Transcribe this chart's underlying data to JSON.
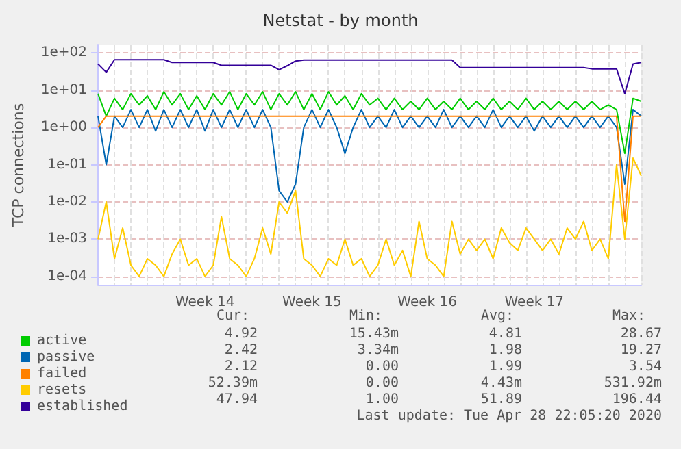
{
  "chart_data": {
    "type": "line",
    "title": "Netstat - by month",
    "ylabel": "TCP connections",
    "log": true,
    "grid": true,
    "legend": "bottom left",
    "categories": [
      null,
      null,
      null,
      null,
      null,
      null,
      null,
      null,
      null,
      null,
      null,
      null,
      null,
      "Week 14",
      null,
      null,
      null,
      null,
      null,
      null,
      null,
      null,
      null,
      null,
      null,
      null,
      "Week 15",
      null,
      null,
      null,
      null,
      null,
      null,
      null,
      null,
      null,
      null,
      null,
      null,
      null,
      "Week 16",
      null,
      null,
      null,
      null,
      null,
      null,
      null,
      null,
      null,
      null,
      null,
      null,
      "Week 17",
      null,
      null,
      null,
      null,
      null,
      null,
      null,
      null,
      null,
      null,
      null,
      null,
      null
    ],
    "ylim": [
      6e-05,
      160
    ],
    "yticks": [
      {
        "value": 0.0001,
        "label": "1e-04"
      },
      {
        "value": 0.001,
        "label": "1e-03"
      },
      {
        "value": 0.01,
        "label": "1e-02"
      },
      {
        "value": 0.1,
        "label": "1e-01"
      },
      {
        "value": 1,
        "label": "1e+00"
      },
      {
        "value": 10,
        "label": "1e+01"
      },
      {
        "value": 100,
        "label": "1e+02"
      }
    ],
    "series": [
      {
        "name": "active",
        "color": "#00cc00",
        "values": [
          8,
          2,
          6,
          3,
          8,
          4,
          7,
          3,
          9,
          4,
          8,
          3,
          7,
          3,
          8,
          4,
          9,
          3,
          8,
          4,
          9,
          3,
          8,
          4,
          9,
          3,
          8,
          3,
          9,
          4,
          7,
          3,
          8,
          4,
          6,
          3,
          6,
          3,
          5,
          3,
          6,
          3,
          5,
          3,
          6,
          3,
          5,
          3,
          6,
          3,
          5,
          3,
          6,
          3,
          5,
          3,
          5,
          3,
          5,
          3,
          5,
          3,
          4,
          3,
          0.2,
          6,
          5
        ]
      },
      {
        "name": "passive",
        "color": "#0066b3",
        "values": [
          2,
          0.1,
          2,
          1,
          3,
          1,
          3,
          0.8,
          3,
          1,
          3,
          1,
          3,
          0.8,
          3,
          1,
          3,
          1,
          3,
          1,
          3,
          1,
          0.02,
          0.01,
          0.03,
          1,
          3,
          1,
          3,
          1,
          0.2,
          1,
          3,
          1,
          2,
          1,
          3,
          1,
          2,
          1,
          2,
          1,
          3,
          1,
          2,
          1,
          2,
          1,
          3,
          1,
          2,
          1,
          2,
          0.8,
          2,
          1,
          2,
          1,
          2,
          1,
          2,
          1,
          2,
          1,
          0.03,
          3,
          2
        ]
      },
      {
        "name": "failed",
        "color": "#ff8000",
        "values": [
          1,
          2,
          2,
          2,
          2,
          2,
          2,
          2,
          2,
          2,
          2,
          2,
          2,
          2,
          2,
          2,
          2,
          2,
          2,
          2,
          2,
          2,
          2,
          2,
          2,
          2,
          2,
          2,
          2,
          2,
          2,
          2,
          2,
          2,
          2,
          2,
          2,
          2,
          2,
          2,
          2,
          2,
          2,
          2,
          2,
          2,
          2,
          2,
          2,
          2,
          2,
          2,
          2,
          2,
          2,
          2,
          2,
          2,
          2,
          2,
          2,
          2,
          2,
          2,
          0.003,
          2,
          2
        ]
      },
      {
        "name": "resets",
        "color": "#ffcc00",
        "values": [
          0.001,
          0.01,
          0.0003,
          0.002,
          0.0002,
          0.0001,
          0.0003,
          0.0002,
          0.0001,
          0.0004,
          0.001,
          0.0002,
          0.0003,
          0.0001,
          0.0002,
          0.004,
          0.0003,
          0.0002,
          0.0001,
          0.0003,
          0.002,
          0.0004,
          0.01,
          0.005,
          0.02,
          0.0003,
          0.0002,
          0.0001,
          0.0003,
          0.0002,
          0.001,
          0.0002,
          0.0003,
          0.0001,
          0.0002,
          0.001,
          0.0002,
          0.0005,
          0.0001,
          0.003,
          0.0003,
          0.0002,
          0.0001,
          0.003,
          0.0004,
          0.001,
          0.0005,
          0.001,
          0.0003,
          0.002,
          0.0008,
          0.0005,
          0.002,
          0.001,
          0.0005,
          0.001,
          0.0004,
          0.002,
          0.001,
          0.003,
          0.0005,
          0.001,
          0.0003,
          0.1,
          0.001,
          0.15,
          0.05
        ]
      },
      {
        "name": "established",
        "color": "#330099",
        "values": [
          50,
          30,
          65,
          65,
          65,
          65,
          65,
          65,
          65,
          55,
          55,
          55,
          55,
          55,
          55,
          46,
          46,
          46,
          46,
          46,
          46,
          46,
          35,
          45,
          60,
          64,
          64,
          64,
          64,
          64,
          64,
          64,
          64,
          64,
          64,
          64,
          64,
          64,
          64,
          64,
          64,
          64,
          64,
          64,
          40,
          40,
          40,
          40,
          40,
          40,
          40,
          40,
          40,
          40,
          40,
          40,
          40,
          40,
          40,
          40,
          37,
          37,
          37,
          37,
          8,
          50,
          55
        ]
      }
    ],
    "annotations": [
      "Cur:",
      "Min:",
      "Avg:",
      "Max:",
      "4.92",
      "15.43m",
      "4.81",
      "28.67",
      "2.42",
      "3.34m",
      "1.98",
      "19.27",
      "2.12",
      "0.00",
      "1.99",
      "3.54",
      "52.39m",
      "0.00",
      "4.43m",
      "531.92m",
      "47.94",
      "1.00",
      "51.89",
      "196.44",
      "Last update: Tue Apr 28 22:05:20 2020"
    ]
  }
}
